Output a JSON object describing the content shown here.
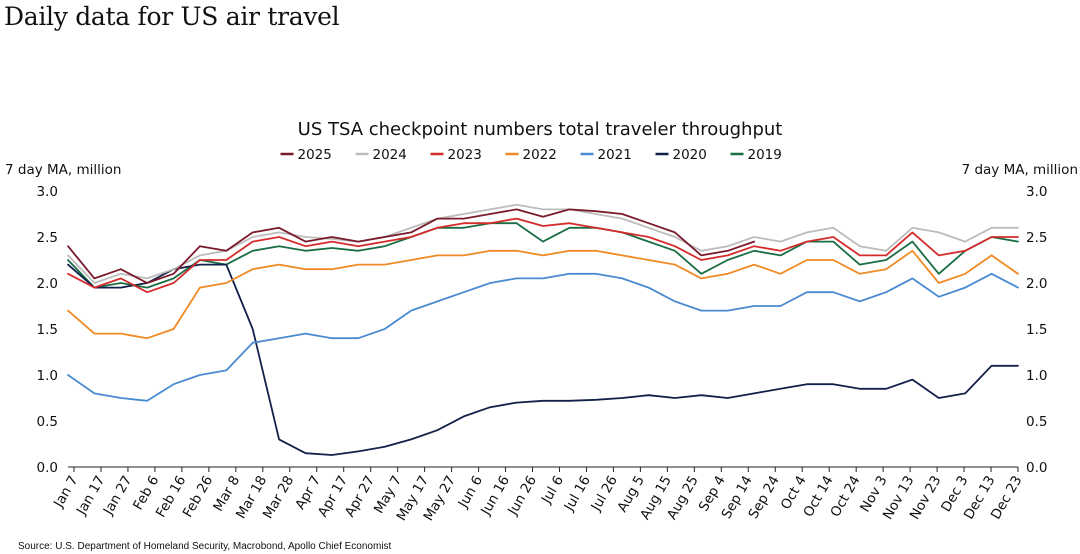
{
  "page_title": "Daily data for US air travel",
  "source": "Source: U.S. Department of Homeland Security, Macrobond, Apollo Chief Economist",
  "chart_data": {
    "type": "line",
    "title": "US TSA checkpoint numbers total traveler throughput",
    "ylabel_left": "7 day MA, million",
    "ylabel_right": "7 day MA, million",
    "ylim": [
      0,
      3
    ],
    "yticks": [
      "0.0",
      "0.5",
      "1.0",
      "1.5",
      "2.0",
      "2.5",
      "3.0"
    ],
    "x_tick_labels": [
      "Jan 7",
      "Jan 17",
      "Jan 27",
      "Feb 6",
      "Feb 16",
      "Feb 26",
      "Mar 8",
      "Mar 18",
      "Mar 28",
      "Apr 7",
      "Apr 17",
      "Apr 27",
      "May 7",
      "May 17",
      "May 27",
      "Jun 6",
      "Jun 16",
      "Jun 26",
      "Jul 6",
      "Jul 16",
      "Jul 26",
      "Aug 5",
      "Aug 15",
      "Aug 25",
      "Sep 4",
      "Sep 14",
      "Sep 24",
      "Oct 4",
      "Oct 14",
      "Oct 24",
      "Nov 3",
      "Nov 13",
      "Nov 23",
      "Dec 3",
      "Dec 13",
      "Dec 23"
    ],
    "x_points": [
      "Jan 1",
      "Jan 11",
      "Jan 21",
      "Jan 31",
      "Feb 10",
      "Feb 20",
      "Mar 2",
      "Mar 12",
      "Mar 22",
      "Apr 1",
      "Apr 11",
      "Apr 21",
      "May 1",
      "May 11",
      "May 21",
      "May 31",
      "Jun 10",
      "Jun 20",
      "Jun 30",
      "Jul 10",
      "Jul 20",
      "Jul 30",
      "Aug 9",
      "Aug 19",
      "Aug 29",
      "Sep 8",
      "Sep 18",
      "Sep 28",
      "Oct 8",
      "Oct 18",
      "Oct 28",
      "Nov 7",
      "Nov 17",
      "Nov 27",
      "Dec 7",
      "Dec 17",
      "Dec 31"
    ],
    "legend_position": "top-center",
    "grid": false,
    "series": [
      {
        "name": "2025",
        "color": "#7a1b2c",
        "values": [
          2.4,
          2.05,
          2.15,
          2.0,
          2.1,
          2.4,
          2.35,
          2.55,
          2.6,
          2.45,
          2.5,
          2.45,
          2.5,
          2.55,
          2.7,
          2.7,
          2.75,
          2.8,
          2.72,
          2.8,
          2.78,
          2.75,
          2.65,
          2.55,
          2.3,
          2.35,
          2.45,
          null,
          null,
          null,
          null,
          null,
          null,
          null,
          null,
          null,
          null
        ]
      },
      {
        "name": "2024",
        "color": "#bcbcbc",
        "values": [
          2.3,
          2.0,
          2.1,
          2.05,
          2.15,
          2.3,
          2.35,
          2.5,
          2.55,
          2.5,
          2.48,
          2.45,
          2.5,
          2.6,
          2.7,
          2.75,
          2.8,
          2.85,
          2.8,
          2.8,
          2.75,
          2.7,
          2.6,
          2.5,
          2.35,
          2.4,
          2.5,
          2.45,
          2.55,
          2.6,
          2.4,
          2.35,
          2.6,
          2.55,
          2.45,
          2.6,
          2.6
        ]
      },
      {
        "name": "2023",
        "color": "#d42b2b",
        "values": [
          2.1,
          1.95,
          2.05,
          1.9,
          2.0,
          2.25,
          2.25,
          2.45,
          2.5,
          2.4,
          2.45,
          2.4,
          2.45,
          2.5,
          2.6,
          2.65,
          2.65,
          2.7,
          2.62,
          2.65,
          2.6,
          2.55,
          2.5,
          2.4,
          2.25,
          2.3,
          2.4,
          2.35,
          2.45,
          2.5,
          2.3,
          2.3,
          2.55,
          2.3,
          2.35,
          2.5,
          2.5
        ]
      },
      {
        "name": "2022",
        "color": "#f08a24",
        "values": [
          1.7,
          1.45,
          1.45,
          1.4,
          1.5,
          1.95,
          2.0,
          2.15,
          2.2,
          2.15,
          2.15,
          2.2,
          2.2,
          2.25,
          2.3,
          2.3,
          2.35,
          2.35,
          2.3,
          2.35,
          2.35,
          2.3,
          2.25,
          2.2,
          2.05,
          2.1,
          2.2,
          2.1,
          2.25,
          2.25,
          2.1,
          2.15,
          2.35,
          2.0,
          2.1,
          2.3,
          2.1
        ]
      },
      {
        "name": "2021",
        "color": "#4a8ad0",
        "values": [
          1.0,
          0.8,
          0.75,
          0.72,
          0.9,
          1.0,
          1.05,
          1.35,
          1.4,
          1.45,
          1.4,
          1.4,
          1.5,
          1.7,
          1.8,
          1.9,
          2.0,
          2.05,
          2.05,
          2.1,
          2.1,
          2.05,
          1.95,
          1.8,
          1.7,
          1.7,
          1.75,
          1.75,
          1.9,
          1.9,
          1.8,
          1.9,
          2.05,
          1.85,
          1.95,
          2.1,
          1.95
        ]
      },
      {
        "name": "2020",
        "color": "#13214a",
        "values": [
          2.2,
          1.95,
          1.95,
          2.0,
          2.15,
          2.2,
          2.2,
          1.5,
          0.3,
          0.15,
          0.13,
          0.17,
          0.22,
          0.3,
          0.4,
          0.55,
          0.65,
          0.7,
          0.72,
          0.72,
          0.73,
          0.75,
          0.78,
          0.75,
          0.78,
          0.75,
          0.8,
          0.85,
          0.9,
          0.9,
          0.85,
          0.85,
          0.95,
          0.75,
          0.8,
          1.1,
          1.1
        ]
      },
      {
        "name": "2019",
        "color": "#1a6e45",
        "values": [
          2.25,
          1.95,
          2.0,
          1.95,
          2.05,
          2.25,
          2.2,
          2.35,
          2.4,
          2.35,
          2.38,
          2.35,
          2.4,
          2.5,
          2.6,
          2.6,
          2.65,
          2.65,
          2.45,
          2.6,
          2.6,
          2.55,
          2.45,
          2.35,
          2.1,
          2.25,
          2.35,
          2.3,
          2.45,
          2.45,
          2.2,
          2.25,
          2.45,
          2.1,
          2.35,
          2.5,
          2.45
        ]
      }
    ]
  }
}
